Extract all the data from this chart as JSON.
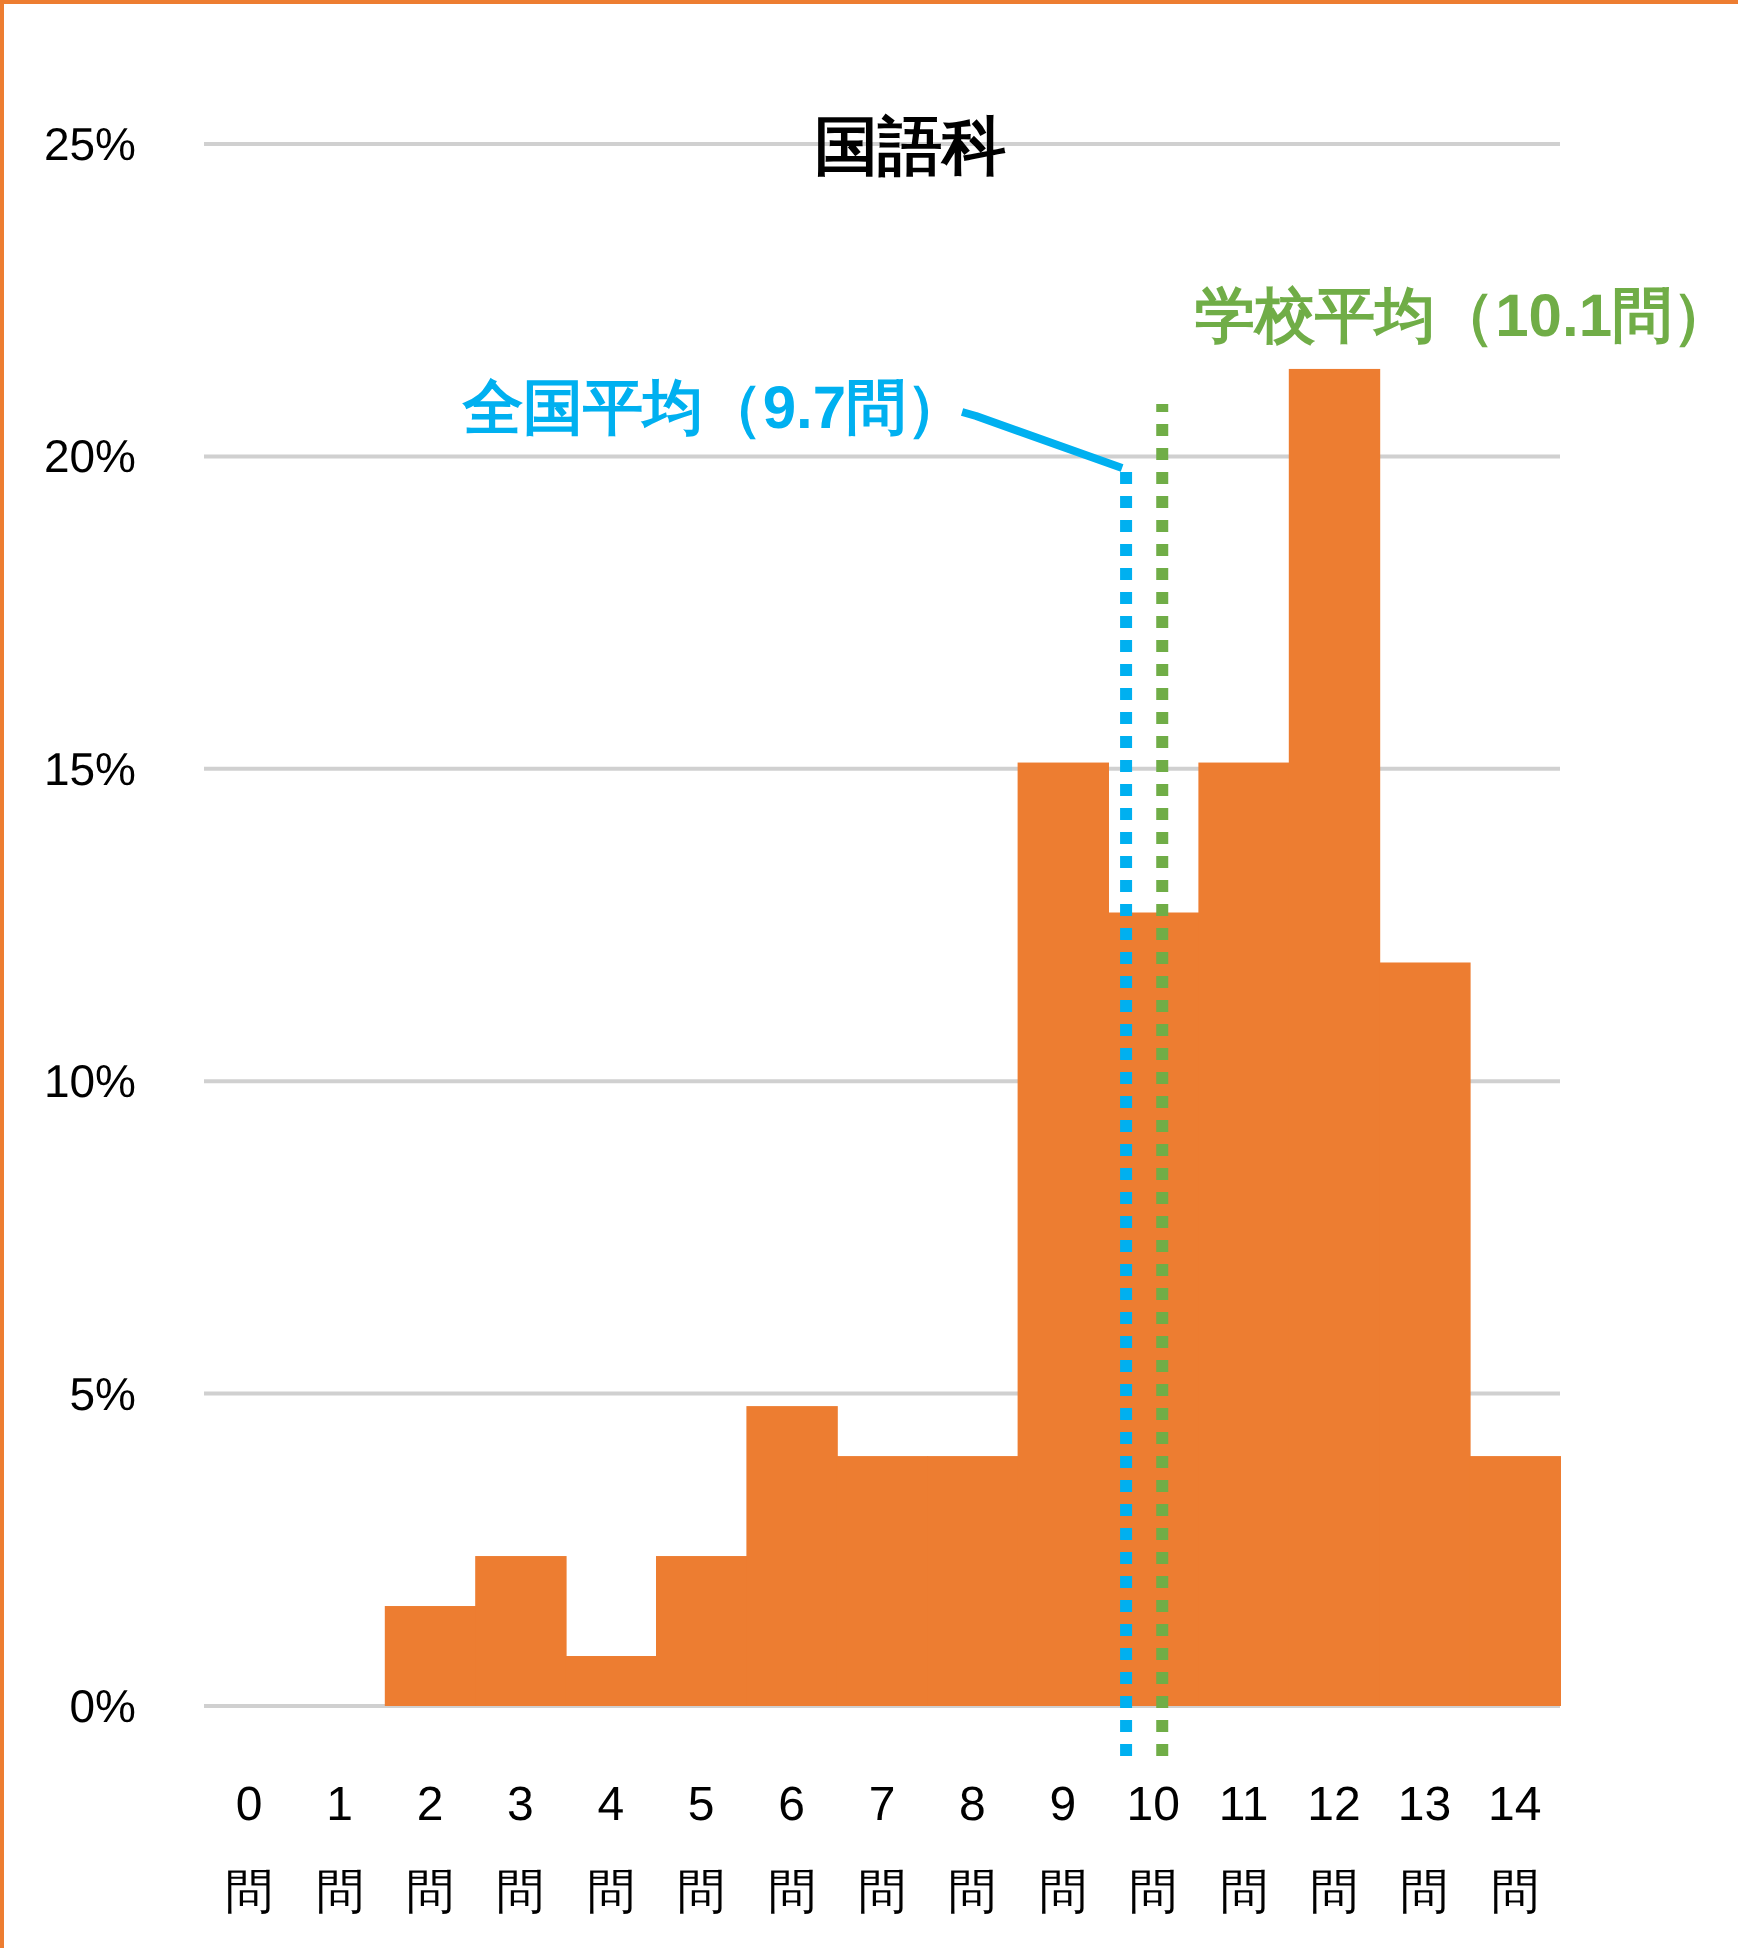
{
  "chart_data": {
    "type": "bar",
    "title": "国語科",
    "x": [
      0,
      1,
      2,
      3,
      4,
      5,
      6,
      7,
      8,
      9,
      10,
      11,
      12,
      13,
      14
    ],
    "values": [
      0,
      0,
      1.6,
      2.4,
      0.8,
      2.4,
      4.8,
      4.0,
      4.0,
      15.1,
      12.7,
      15.1,
      21.4,
      11.9,
      4.0
    ],
    "color": "#ed7d31",
    "xlim": [
      -0.5,
      14.5
    ],
    "xticks": [
      {
        "value": 0,
        "label": "0問"
      },
      {
        "value": 1,
        "label": "1問"
      },
      {
        "value": 2,
        "label": "2問"
      },
      {
        "value": 3,
        "label": "3問"
      },
      {
        "value": 4,
        "label": "4問"
      },
      {
        "value": 5,
        "label": "5問"
      },
      {
        "value": 6,
        "label": "6問"
      },
      {
        "value": 7,
        "label": "7問"
      },
      {
        "value": 8,
        "label": "8問"
      },
      {
        "value": 9,
        "label": "9問"
      },
      {
        "value": 10,
        "label": "10問"
      },
      {
        "value": 11,
        "label": "11問"
      },
      {
        "value": 12,
        "label": "12問"
      },
      {
        "value": 13,
        "label": "13問"
      },
      {
        "value": 14,
        "label": "14問"
      }
    ],
    "ylim": [
      0,
      25
    ],
    "yticks": [
      {
        "value": 0,
        "label": "0%"
      },
      {
        "value": 5,
        "label": "5%"
      },
      {
        "value": 10,
        "label": "10%"
      },
      {
        "value": 15,
        "label": "15%"
      },
      {
        "value": 20,
        "label": "20%"
      },
      {
        "value": 25,
        "label": "25%"
      }
    ],
    "grid": "y",
    "ref_lines": [
      {
        "axis": "x",
        "value": 9.7,
        "label": "全国平均（9.7問）",
        "color": "#00b0f0",
        "line_style": "dotted"
      },
      {
        "axis": "x",
        "value": 10.1,
        "label": "学校平均（10.1問）",
        "color": "#70ad47",
        "line_style": "dotted"
      }
    ]
  }
}
